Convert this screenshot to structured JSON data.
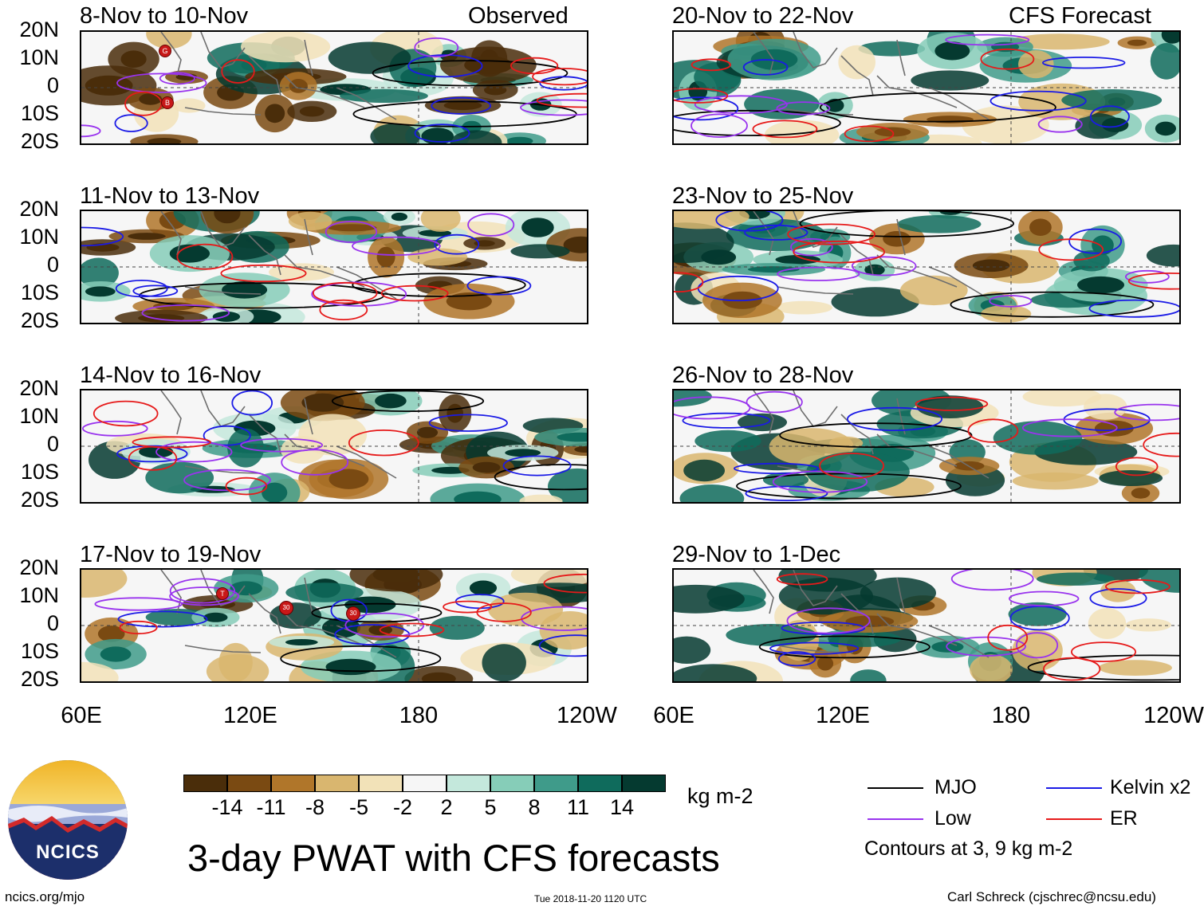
{
  "header": {
    "left_label": "Observed",
    "right_label": "CFS Forecast"
  },
  "panels": {
    "observed": [
      {
        "title": "8-Nov to 10-Nov"
      },
      {
        "title": "11-Nov to 13-Nov"
      },
      {
        "title": "14-Nov to 16-Nov"
      },
      {
        "title": "17-Nov to 19-Nov"
      }
    ],
    "forecast": [
      {
        "title": "20-Nov to 22-Nov"
      },
      {
        "title": "23-Nov to 25-Nov"
      },
      {
        "title": "26-Nov to 28-Nov"
      },
      {
        "title": "29-Nov to 1-Dec"
      }
    ]
  },
  "axes": {
    "y_ticks": [
      "20N",
      "10N",
      "0",
      "10S",
      "20S"
    ],
    "x_ticks": [
      "60E",
      "120E",
      "180",
      "120W"
    ]
  },
  "colorbar": {
    "unit": "kg m-2",
    "labels": [
      "-14",
      "-11",
      "-8",
      "-5",
      "-2",
      "2",
      "5",
      "8",
      "11",
      "14"
    ],
    "colors": [
      "#4a2d0a",
      "#7a4a12",
      "#b0762a",
      "#d9b66f",
      "#f2e2b8",
      "#f6f6f6",
      "#c4e8dc",
      "#86cdb8",
      "#3f9b8a",
      "#0f6b5c",
      "#053a30"
    ]
  },
  "legend": {
    "mjo": "MJO",
    "kelvin": "Kelvin x2",
    "low": "Low",
    "er": "ER",
    "contours_note": "Contours at 3, 9 kg m-2",
    "colors": {
      "mjo": "#000000",
      "kelvin": "#1a1ae6",
      "low": "#9933ee",
      "er": "#e61a1a"
    }
  },
  "storm_markers": {
    "p0": [
      "G",
      "B"
    ],
    "p3": [
      "T",
      "30",
      "30"
    ]
  },
  "title": "3-day PWAT with CFS forecasts",
  "logo_text": "NCICS",
  "footer": {
    "url": "ncics.org/mjo",
    "timestamp": "Tue 2018-11-20 1120 UTC",
    "author": "Carl Schreck (cjschrec@ncsu.edu)"
  }
}
